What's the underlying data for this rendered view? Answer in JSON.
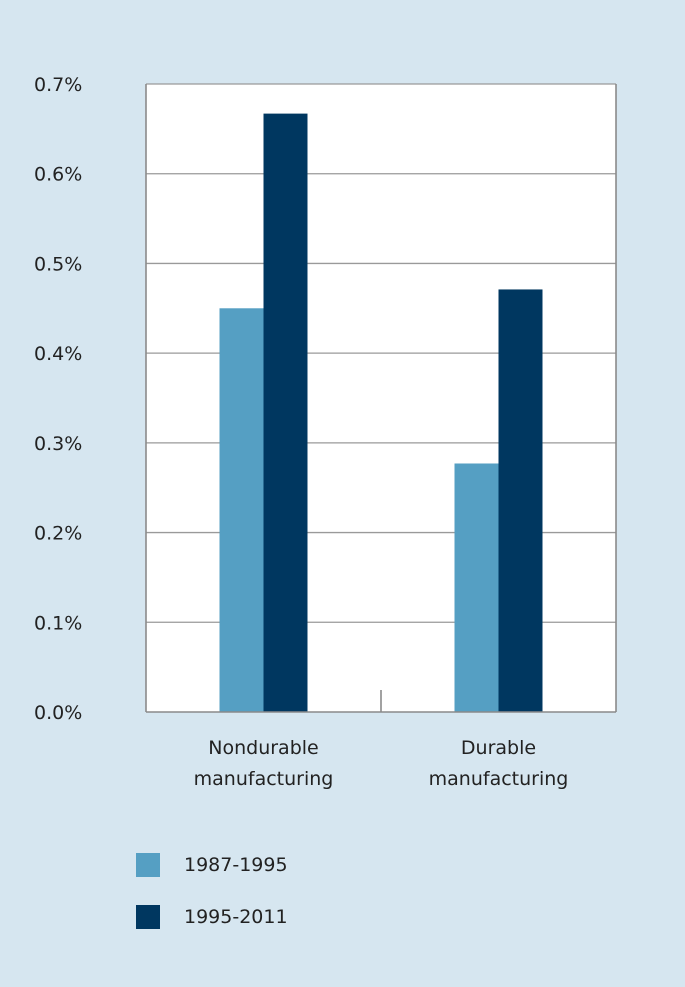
{
  "chart_data": {
    "type": "bar",
    "categories": [
      [
        "Nondurable",
        "manufacturing"
      ],
      [
        "Durable",
        "manufacturing"
      ]
    ],
    "series": [
      {
        "name": "1987-1995",
        "color": "#559fc3",
        "values": [
          0.45,
          0.277
        ]
      },
      {
        "name": "1995-2011",
        "color": "#003760",
        "values": [
          0.667,
          0.471
        ]
      }
    ],
    "yticks": [
      "0.0%",
      "0.1%",
      "0.2%",
      "0.3%",
      "0.4%",
      "0.5%",
      "0.6%",
      "0.7%"
    ],
    "ylim": [
      0,
      0.7
    ],
    "grid": true,
    "legend_position": "bottom-left"
  }
}
